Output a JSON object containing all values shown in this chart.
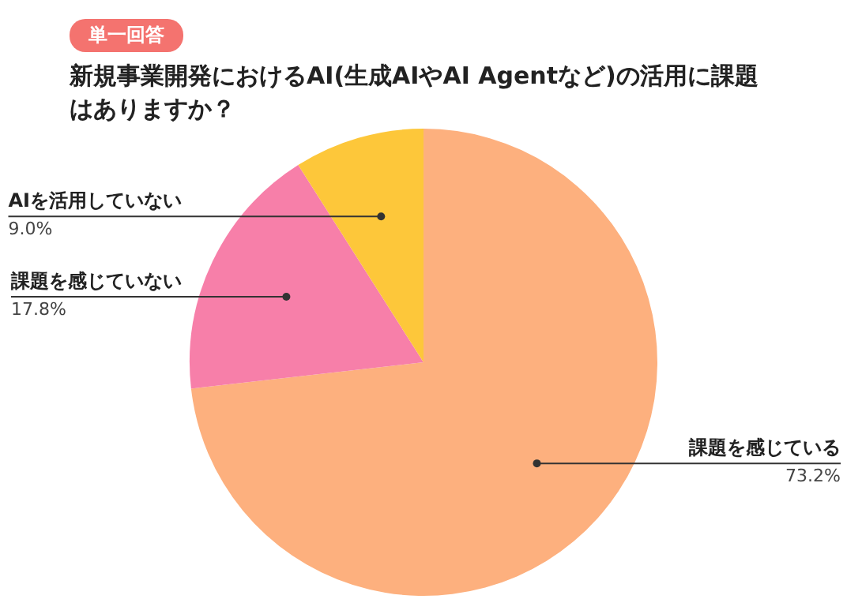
{
  "chart_data": {
    "type": "pie",
    "title": "新規事業開発におけるAI(生成AIやAI Agentなど)の活用に課題はありますか？",
    "annotations": [
      "単一回答"
    ],
    "categories": [
      "課題を感じている",
      "課題を感じていない",
      "AIを活用していない"
    ],
    "values": [
      73.2,
      17.8,
      9.0
    ],
    "value_labels": [
      "73.2%",
      "17.8%",
      "9.0%"
    ],
    "colors": [
      "#fdb07e",
      "#f77fa9",
      "#fdc73a"
    ]
  }
}
